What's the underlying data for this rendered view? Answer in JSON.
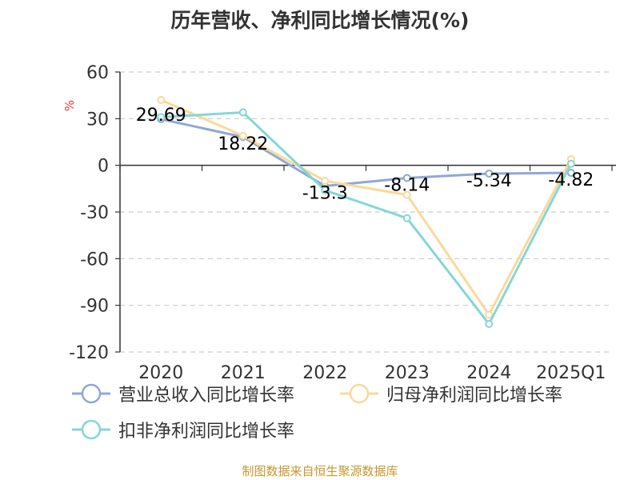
{
  "title": "历年营收、净利同比增长情况(%)",
  "source": "制图数据来自恒生聚源数据库",
  "colors": {
    "revenue": "#8fa8d6",
    "net_profit": "#fad99a",
    "deducted_profit": "#86d6d6",
    "ylabel": "#e04040",
    "axis": "#333333",
    "grid": "#cccccc"
  },
  "chart_data": {
    "type": "line",
    "title": "历年营收、净利同比增长情况(%)",
    "xlabel": "",
    "ylabel": "%",
    "categories": [
      "2020",
      "2021",
      "2022",
      "2023",
      "2024",
      "2025Q1"
    ],
    "ylim": [
      -120,
      60
    ],
    "yticks": [
      60,
      30,
      0,
      -30,
      -60,
      -90,
      -120
    ],
    "grid": true,
    "legend_position": "bottom",
    "series": [
      {
        "name": "营业总收入同比增长率",
        "color": "#8fa8d6",
        "values": [
          29.69,
          18.22,
          -13.3,
          -8.14,
          -5.34,
          -4.82
        ],
        "labels": [
          "29.69",
          "18.22",
          "-13.3",
          "-8.14",
          "-5.34",
          "-4.82"
        ]
      },
      {
        "name": "归母净利润同比增长率",
        "color": "#fad99a",
        "values": [
          42,
          19,
          -10,
          -19,
          -96,
          4
        ],
        "labels": []
      },
      {
        "name": "扣非净利润同比增长率",
        "color": "#86d6d6",
        "values": [
          31,
          34,
          -16,
          -34,
          -102,
          1
        ],
        "labels": []
      }
    ]
  }
}
